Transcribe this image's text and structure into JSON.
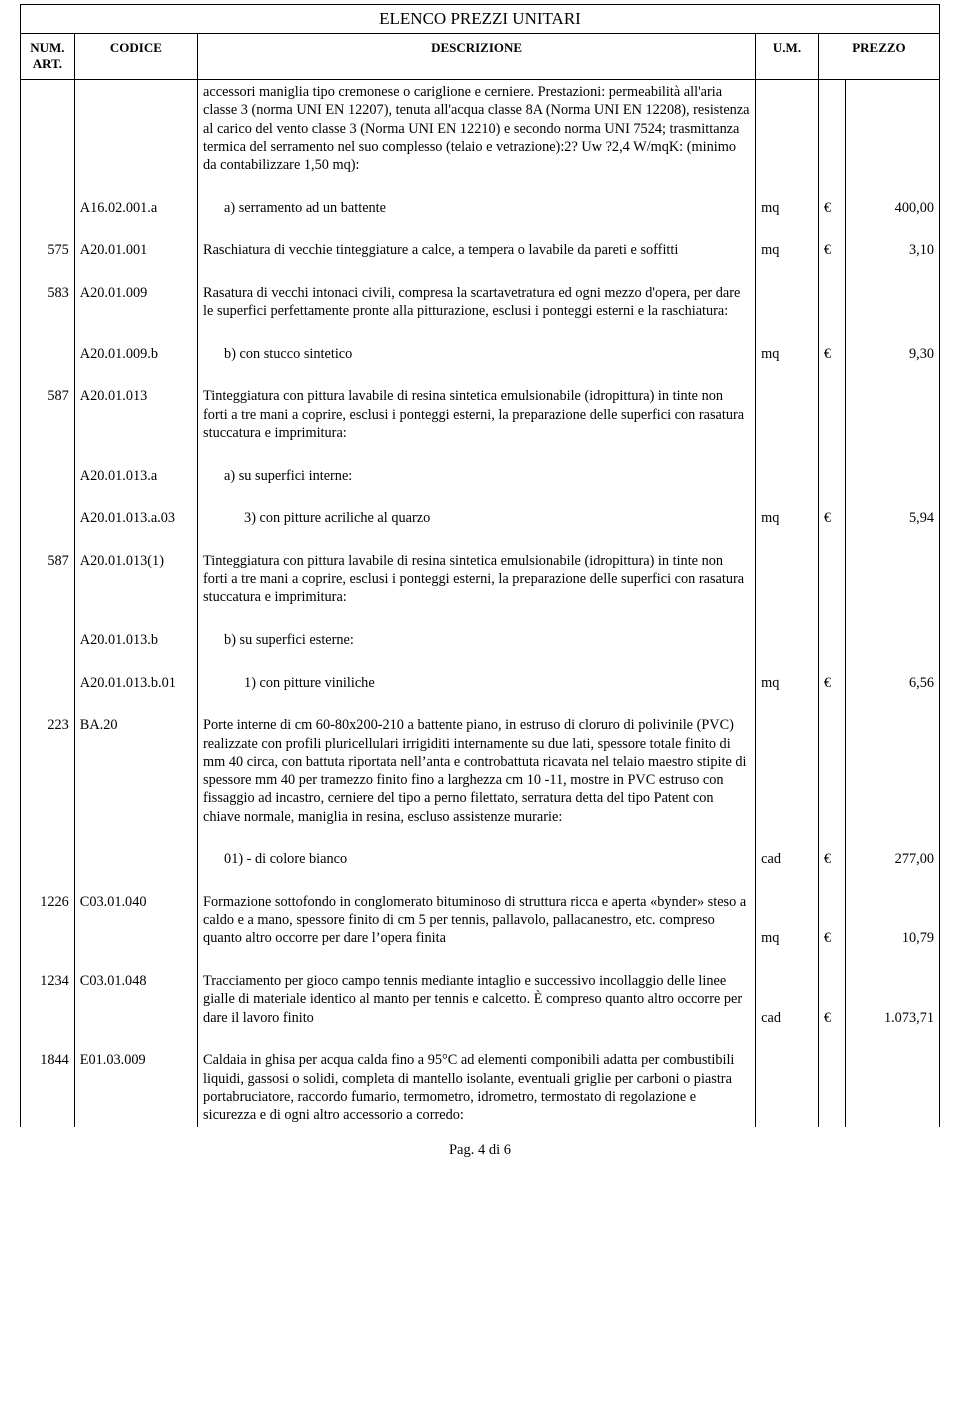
{
  "title": "ELENCO PREZZI UNITARI",
  "headers": {
    "num": "NUM. ART.",
    "code": "CODICE",
    "desc": "DESCRIZIONE",
    "um": "U.M.",
    "price": "PREZZO"
  },
  "currency": "€",
  "colors": {
    "text": "#000000",
    "background": "#ffffff",
    "border": "#000000"
  },
  "rows": [
    {
      "num": "",
      "code": "",
      "desc": "accessori maniglia tipo cremonese o cariglione  e cerniere. Prestazioni: permeabilità all'aria classe 3 (norma UNI EN 12207),  tenuta all'acqua classe 8A (Norma UNI EN 12208), resistenza al  carico del vento classe 3 (Norma UNI EN 12210) e secondo norma  UNI 7524; trasmittanza termica del serramento nel suo complesso  (telaio e vetrazione):2? Uw ?2,4 W/mqK: (minimo da  contabilizzare 1,50 mq):",
      "um": "",
      "sym": "",
      "val": "",
      "indent": 0,
      "topOpen": true
    },
    {
      "num": "",
      "code": "A16.02.001.a",
      "desc": "a) serramento ad un battente",
      "um": "mq",
      "sym": "€",
      "val": "400,00",
      "indent": 1
    },
    {
      "num": "575",
      "code": "A20.01.001",
      "desc": "Raschiatura di vecchie tinteggiature a calce, a tempera o lavabile da pareti e soffitti",
      "um": "mq",
      "sym": "€",
      "val": "3,10",
      "indent": 0
    },
    {
      "num": "583",
      "code": "A20.01.009",
      "desc": "Rasatura di vecchi intonaci civili, compresa la scartavetratura ed  ogni mezzo d'opera, per dare le superfici perfettamente pronte alla  pitturazione, esclusi i ponteggi esterni e la raschiatura:",
      "um": "",
      "sym": "",
      "val": "",
      "indent": 0
    },
    {
      "num": "",
      "code": "A20.01.009.b",
      "desc": "b) con stucco sintetico",
      "um": "mq",
      "sym": "€",
      "val": "9,30",
      "indent": 1
    },
    {
      "num": "587",
      "code": "A20.01.013",
      "desc": "Tinteggiatura con pittura lavabile di resina sintetica  emulsionabile (idropittura) in tinte non forti a tre mani a coprire,  esclusi i ponteggi esterni, la preparazione delle superfici con  rasatura stuccatura e imprimitura:",
      "um": "",
      "sym": "",
      "val": "",
      "indent": 0
    },
    {
      "num": "",
      "code": "A20.01.013.a",
      "desc": "a) su superfici interne:",
      "um": "",
      "sym": "",
      "val": "",
      "indent": 1
    },
    {
      "num": "",
      "code": "A20.01.013.a.03",
      "desc": "3) con pitture acriliche al quarzo",
      "um": "mq",
      "sym": "€",
      "val": "5,94",
      "indent": 2
    },
    {
      "num": "587",
      "code": "A20.01.013(1)",
      "desc": "Tinteggiatura con pittura lavabile di resina sintetica  emulsionabile (idropittura) in tinte non forti a tre mani a coprire,  esclusi i ponteggi esterni, la preparazione delle superfici con  rasatura stuccatura e imprimitura:",
      "um": "",
      "sym": "",
      "val": "",
      "indent": 0
    },
    {
      "num": "",
      "code": "A20.01.013.b",
      "desc": "b) su superfici esterne:",
      "um": "",
      "sym": "",
      "val": "",
      "indent": 1
    },
    {
      "num": "",
      "code": "A20.01.013.b.01",
      "desc": "1) con pitture viniliche",
      "um": "mq",
      "sym": "€",
      "val": "6,56",
      "indent": 2
    },
    {
      "num": "223",
      "code": "BA.20",
      "desc": "Porte interne di cm 60-80x200-210 a battente piano, in estruso di cloruro di polivinile (PVC) realizzate con profili pluricellulari irrigiditi internamente su due lati, spessore totale finito di mm 40 circa, con battuta riportata nell’anta e controbattuta ricavata nel telaio maestro stipite di spessore mm 40 per tramezzo finito fino a larghezza cm 10 -11, mostre in PVC estruso con fissaggio ad incastro, cerniere del tipo a perno filettato, serratura detta del tipo Patent con chiave normale, maniglia in resina, escluso assistenze murarie:",
      "um": "",
      "sym": "",
      "val": "",
      "indent": 0
    },
    {
      "num": "",
      "code": "",
      "desc": "01) - di colore bianco",
      "um": "cad",
      "sym": "€",
      "val": "277,00",
      "indent": 1
    },
    {
      "num": "1226",
      "code": "C03.01.040",
      "desc": "Formazione sottofondo in conglomerato bituminoso di struttura ricca e aperta «bynder» steso a caldo e a mano, spessore finito di  cm 5 per tennis, pallavolo, pallacanestro, etc. compreso quanto  altro occorre per dare l’opera finita",
      "um": "mq",
      "sym": "€",
      "val": "10,79",
      "indent": 0
    },
    {
      "num": "1234",
      "code": "C03.01.048",
      "desc": "Tracciamento per gioco campo tennis mediante intaglio e successivo incollaggio delle linee gialle di materiale identico al  manto per tennis e calcetto. È compreso quanto altro occorre per  dare il lavoro finito",
      "um": "cad",
      "sym": "€",
      "val": "1.073,71",
      "indent": 0
    },
    {
      "num": "1844",
      "code": "E01.03.009",
      "desc": "Caldaia in ghisa per acqua calda fino a 95°C ad elementi  componibili adatta per combustibili liquidi, gassosi o solidi,  completa di mantello isolante, eventuali griglie per carboni o  piastra portabruciatore, raccordo fumario, termometro,  idrometro, termostato di regolazione e sicurezza e di ogni altro  accessorio a corredo:",
      "um": "",
      "sym": "",
      "val": "",
      "indent": 0,
      "bottomOpen": true
    }
  ],
  "footer": "Pag. 4 di 6"
}
